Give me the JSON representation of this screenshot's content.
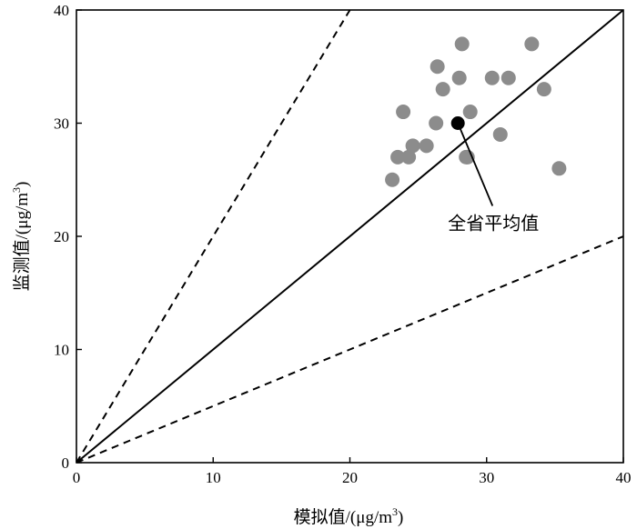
{
  "chart_data": {
    "type": "scatter",
    "xlabel": "模拟值/(μg/m",
    "ylabel": "监测值/(μg/m",
    "unit_superscript": "3",
    "unit_close": ")",
    "xlim": [
      0,
      40
    ],
    "ylim": [
      0,
      40
    ],
    "xticks": [
      "0",
      "10",
      "20",
      "30",
      "40"
    ],
    "yticks": [
      "0",
      "10",
      "20",
      "30",
      "40"
    ],
    "grid": false,
    "colors": {
      "points": "#8c8c8c",
      "highlight": "#000000",
      "lines": "#000000"
    },
    "series": [
      {
        "points": [
          [
            23.1,
            25.0
          ],
          [
            23.5,
            27.0
          ],
          [
            23.9,
            31.0
          ],
          [
            24.3,
            27.0
          ],
          [
            24.6,
            28.0
          ],
          [
            25.6,
            28.0
          ],
          [
            26.3,
            30.0
          ],
          [
            26.4,
            35.0
          ],
          [
            26.8,
            33.0
          ],
          [
            28.0,
            34.0
          ],
          [
            28.2,
            37.0
          ],
          [
            28.5,
            27.0
          ],
          [
            28.6,
            27.0
          ],
          [
            28.8,
            31.0
          ],
          [
            30.4,
            34.0
          ],
          [
            31.0,
            29.0
          ],
          [
            31.6,
            34.0
          ],
          [
            33.3,
            37.0
          ],
          [
            34.2,
            33.0
          ],
          [
            35.3,
            26.0
          ]
        ]
      }
    ],
    "highlight": {
      "point": [
        27.9,
        30.0
      ],
      "label": "全省平均值",
      "label_anchor": [
        30.5,
        20.6
      ]
    },
    "reference_lines": [
      {
        "style": "solid",
        "from": [
          0,
          0
        ],
        "to": [
          40,
          40
        ]
      },
      {
        "style": "dashed",
        "from": [
          0,
          0
        ],
        "to": [
          20,
          40
        ]
      },
      {
        "style": "dashed",
        "from": [
          0,
          0
        ],
        "to": [
          40,
          20
        ]
      }
    ]
  }
}
